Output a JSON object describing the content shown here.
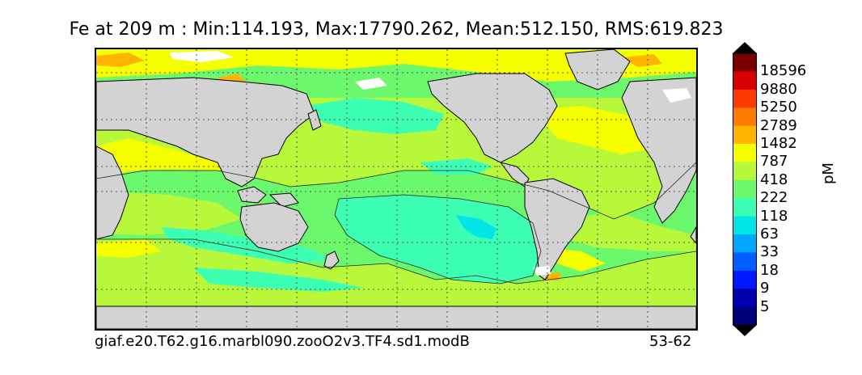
{
  "title": "Fe at 209 m : Min:114.193, Max:17790.262, Mean:512.150, RMS:619.823",
  "footer": {
    "case_name": "giaf.e20.T62.g16.marbl090.zooO2v3.TF4.sd1.modB",
    "years": "53-62"
  },
  "colorbar": {
    "units": "pM",
    "levels": [
      "18596",
      "9880",
      "5250",
      "2789",
      "1482",
      "787",
      "418",
      "222",
      "118",
      "63",
      "33",
      "18",
      "9",
      "5"
    ],
    "colors_top_to_bottom": [
      "#7a0000",
      "#d80000",
      "#ff3a00",
      "#ff7a00",
      "#ffb400",
      "#f5ff00",
      "#b8f83a",
      "#6cf86c",
      "#3cffb4",
      "#00e6e6",
      "#00a6ff",
      "#0060ff",
      "#0018ff",
      "#0000b0",
      "#00007a"
    ],
    "top_arrow_color": "#000000",
    "bottom_arrow_color": "#000000"
  },
  "map": {
    "land_color": "#d3d3d3",
    "ice_color": "#ffffff",
    "gridline_style": "dotted"
  }
}
